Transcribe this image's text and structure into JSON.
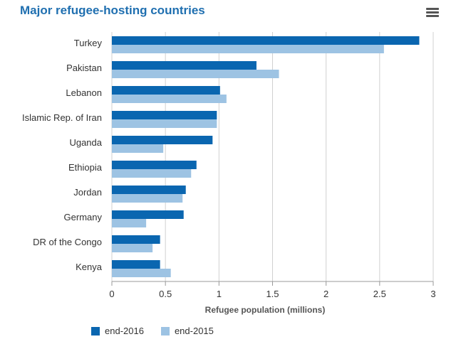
{
  "chart_data": {
    "type": "bar",
    "orientation": "horizontal",
    "title": "Major refugee-hosting countries",
    "xlabel": "Refugee population (millions)",
    "ylabel": "",
    "xlim": [
      0,
      3
    ],
    "ticks": [
      "0",
      "0.5",
      "1",
      "1.5",
      "2",
      "2.5",
      "3"
    ],
    "grid": true,
    "legend_position": "bottom-left",
    "categories": [
      "Turkey",
      "Pakistan",
      "Lebanon",
      "Islamic Rep. of Iran",
      "Uganda",
      "Ethiopia",
      "Jordan",
      "Germany",
      "DR of the Congo",
      "Kenya"
    ],
    "series": [
      {
        "name": "end-2016",
        "color": "#0a66b0",
        "values": [
          2.87,
          1.35,
          1.01,
          0.98,
          0.94,
          0.79,
          0.69,
          0.67,
          0.45,
          0.45
        ]
      },
      {
        "name": "end-2015",
        "color": "#9dc3e3",
        "values": [
          2.54,
          1.56,
          1.07,
          0.98,
          0.48,
          0.74,
          0.66,
          0.32,
          0.38,
          0.55
        ]
      }
    ]
  }
}
